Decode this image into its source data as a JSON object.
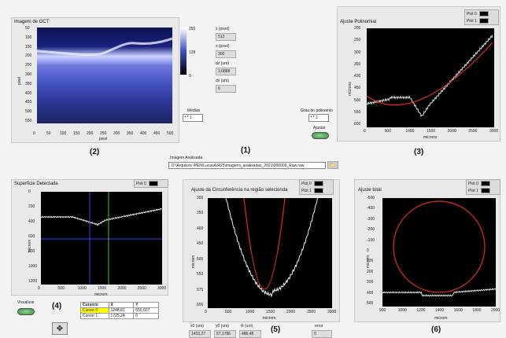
{
  "panel1": {
    "title": "Imagem de OCT",
    "ylabel": "pixel",
    "xlabel": "pixel",
    "xticks": [
      "0",
      "50",
      "100",
      "150",
      "200",
      "250",
      "300",
      "350",
      "400",
      "450",
      "500"
    ],
    "yticks": [
      "50",
      "100",
      "150",
      "200",
      "250",
      "300",
      "350",
      "400",
      "450",
      "500",
      "550"
    ],
    "colorbar_labels": [
      "255",
      "128",
      "0"
    ],
    "label": "(2)"
  },
  "fields": {
    "z_label": "z (pixel)",
    "z_value": "512",
    "x_label": "x (pixel)",
    "x_value": "300",
    "dz_label": "dz (um)",
    "dz_value": "3,0888",
    "dx_label": "dx (um)",
    "dx_value": "6",
    "medias_label": "Médias",
    "medias_value": "1",
    "grau_label": "Grau do polinomio",
    "grau_value": "2",
    "ajustar_label": "Ajustar"
  },
  "panel3": {
    "title": "Ajuste Polinomial",
    "ylabel": "microns",
    "xlabel": "microns",
    "xticks": [
      "0",
      "500",
      "1000",
      "1500",
      "2000",
      "2500",
      "3000"
    ],
    "yticks": [
      "200",
      "250",
      "300",
      "350",
      "400",
      "450",
      "500",
      "550",
      "600"
    ],
    "legend": [
      "Plot 0",
      "Plot 1"
    ],
    "label": "(3)"
  },
  "center": {
    "num_label": "(1)",
    "imagem_label": "Imagem Analisada",
    "path": "D:\\Arquivos IPEN\\LucasA\\R25\\imagens_analisadas_2021\\000009_Raw.raw"
  },
  "panel4": {
    "title": "Superficie Detectada",
    "ylabel": "microm",
    "xlabel": "microm",
    "xticks": [
      "0",
      "500",
      "1000",
      "1500",
      "2000",
      "2500",
      "3000"
    ],
    "yticks": [
      "0",
      "200",
      "400",
      "600",
      "800",
      "1000",
      "1200"
    ],
    "legend": [
      "Plot 0"
    ],
    "label": "(4)",
    "visualizar": "Visualizar",
    "cursors_header": [
      "Cursors:",
      "X",
      "Y"
    ],
    "cursor_rows": [
      [
        "Cursor 0",
        "1248,81",
        "650,607"
      ],
      [
        "Cursor 1",
        "1725,24",
        "0"
      ]
    ]
  },
  "panel5": {
    "title": "Ajuste da Circunferência na região selecionda",
    "ylabel": "microm",
    "xlabel": "microm",
    "xticks": [
      "0",
      "500",
      "1000",
      "1500",
      "2000",
      "2500",
      "3000"
    ],
    "yticks": [
      "300",
      "350",
      "400",
      "450",
      "500",
      "550",
      "575",
      "600"
    ],
    "legend": [
      "Plot 0",
      "Plot 1"
    ],
    "label": "(5)",
    "x0_label": "x0 (um)",
    "x0_value": "1433,27",
    "y0_label": "y0 (um)",
    "y0_value": "57,1786",
    "r_label": "R (um)",
    "r_value": "486,48",
    "error_label": "error",
    "error_value": "0"
  },
  "panel6": {
    "title": "Ajuste total",
    "ylabel": "microm",
    "xlabel": "microm",
    "xticks": [
      "900",
      "1000",
      "1200",
      "1400",
      "1600",
      "1800",
      "2000"
    ],
    "yticks": [
      "-500",
      "-400",
      "-300",
      "-200",
      "-100",
      "0",
      "100",
      "200",
      "300",
      "400",
      "500"
    ],
    "legend": [
      "Plot 0",
      "Plot 1"
    ],
    "label": "(6)"
  }
}
